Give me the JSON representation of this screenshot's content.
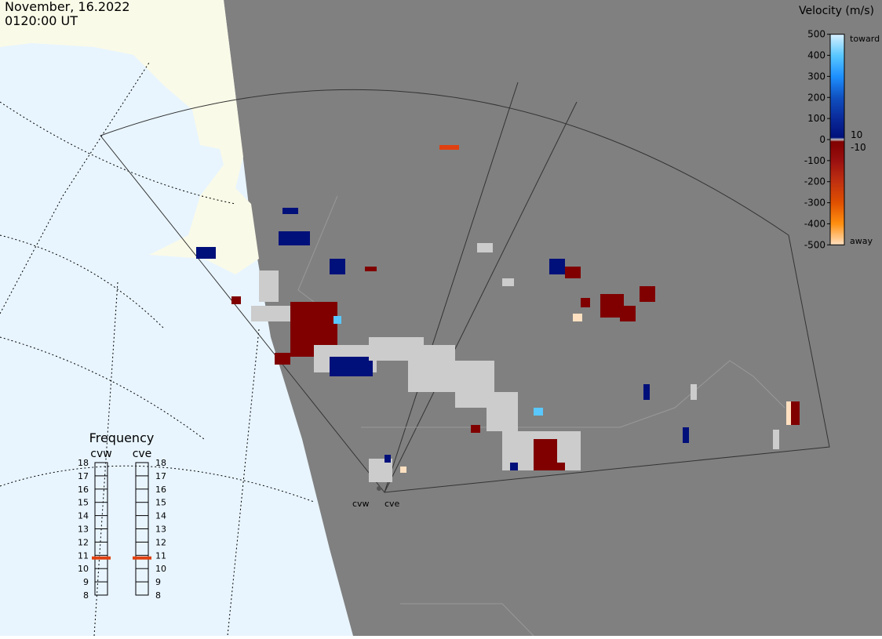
{
  "header": {
    "date": "November, 16.2022",
    "time": "0120:00 UT"
  },
  "colorbar": {
    "title": "Velocity (m/s)",
    "ticks": [
      500,
      400,
      300,
      200,
      100,
      0,
      -100,
      -200,
      -300,
      -400,
      -500
    ],
    "inner_ticks": [
      10,
      -10
    ],
    "top_label": "toward",
    "bottom_label": "away"
  },
  "frequency": {
    "title": "Frequency",
    "ylim": [
      8,
      18
    ],
    "ticks": [
      18,
      17,
      16,
      15,
      14,
      13,
      12,
      11,
      10,
      9,
      8
    ],
    "radars": [
      {
        "name": "cvw",
        "value": 10.8
      },
      {
        "name": "cve",
        "value": 10.8
      }
    ]
  },
  "map_labels": [
    "cvw",
    "cve"
  ]
}
